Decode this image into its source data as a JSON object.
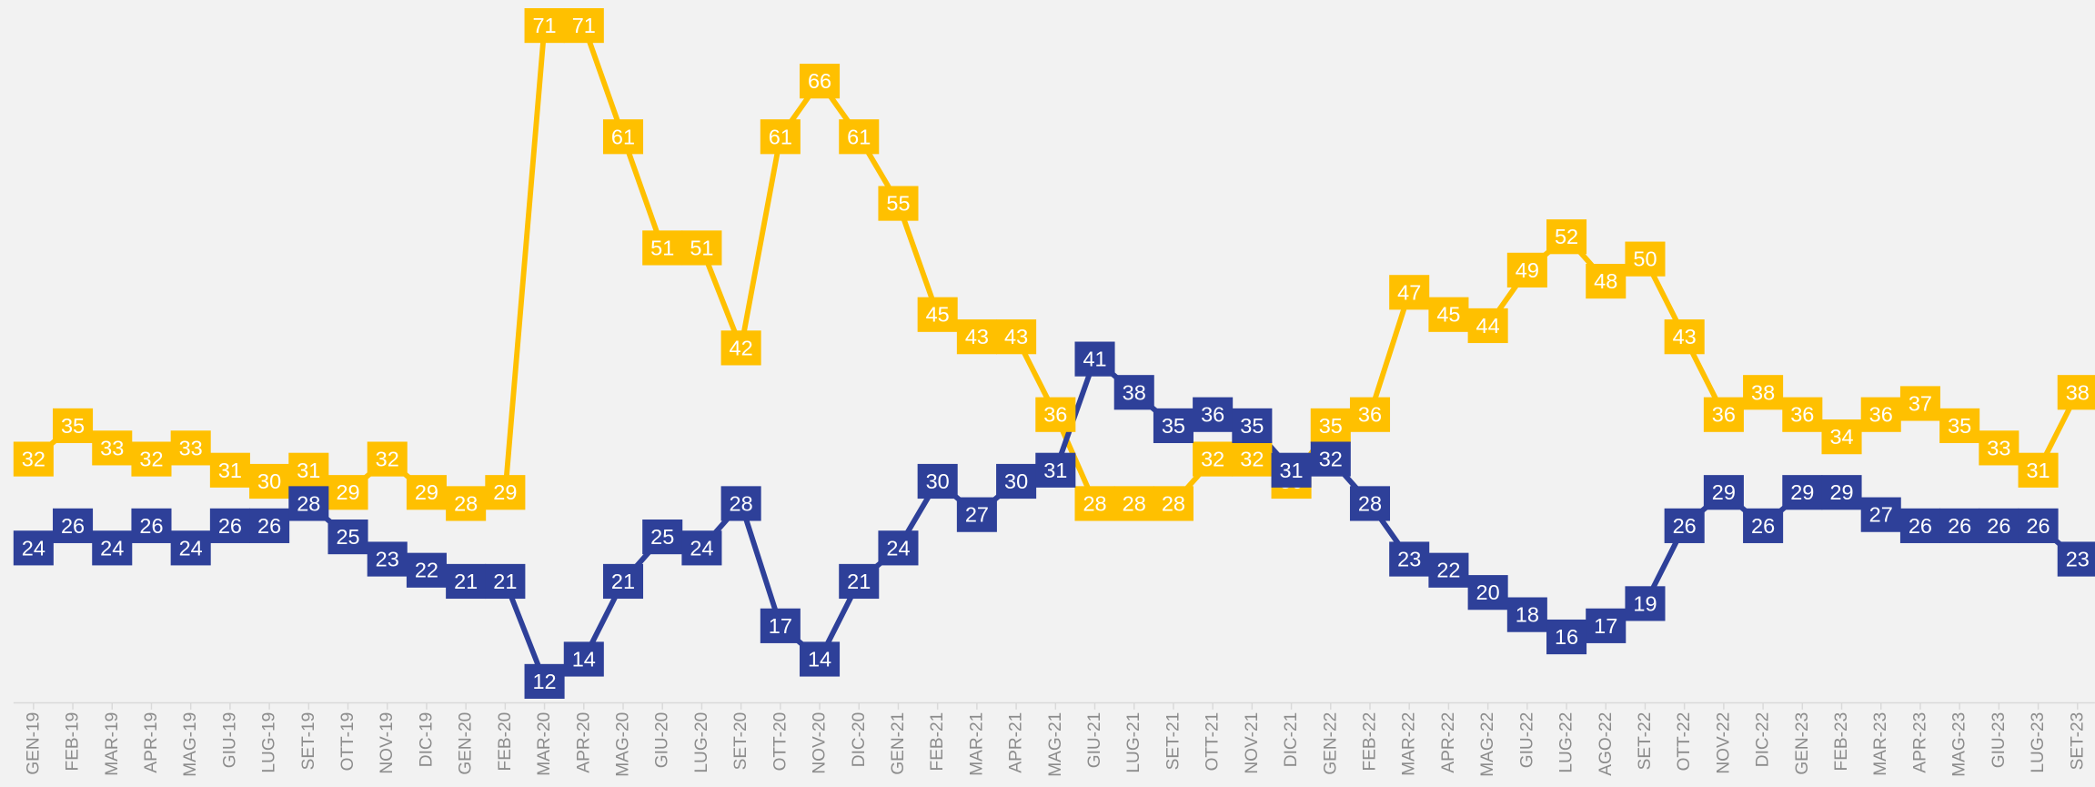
{
  "chart_data": {
    "type": "line",
    "categories": [
      "GEN-19",
      "FEB-19",
      "MAR-19",
      "APR-19",
      "MAG-19",
      "GIU-19",
      "LUG-19",
      "SET-19",
      "OTT-19",
      "NOV-19",
      "DIC-19",
      "GEN-20",
      "FEB-20",
      "MAR-20",
      "APR-20",
      "MAG-20",
      "GIU-20",
      "LUG-20",
      "SET-20",
      "OTT-20",
      "NOV-20",
      "DIC-20",
      "GEN-21",
      "FEB-21",
      "MAR-21",
      "APR-21",
      "MAG-21",
      "GIU-21",
      "LUG-21",
      "SET-21",
      "OTT-21",
      "NOV-21",
      "DIC-21",
      "GEN-22",
      "FEB-22",
      "MAR-22",
      "APR-22",
      "MAG-22",
      "GIU-22",
      "LUG-22",
      "AGO-22",
      "SET-22",
      "OTT-22",
      "NOV-22",
      "DIC-22",
      "GEN-23",
      "FEB-23",
      "MAR-23",
      "APR-23",
      "MAG-23",
      "GIU-23",
      "LUG-23",
      "SET-23"
    ],
    "series": [
      {
        "color": "#ffc000",
        "values": [
          32,
          35,
          33,
          32,
          33,
          31,
          30,
          31,
          29,
          32,
          29,
          28,
          29,
          71,
          71,
          61,
          51,
          51,
          42,
          61,
          66,
          61,
          55,
          45,
          43,
          43,
          36,
          28,
          28,
          28,
          32,
          32,
          30,
          35,
          36,
          47,
          45,
          44,
          49,
          52,
          48,
          50,
          43,
          36,
          38,
          36,
          34,
          36,
          37,
          35,
          33,
          31,
          38
        ]
      },
      {
        "color": "#2e4099",
        "values": [
          24,
          26,
          24,
          26,
          24,
          26,
          26,
          28,
          25,
          23,
          22,
          21,
          21,
          12,
          14,
          21,
          25,
          24,
          28,
          17,
          14,
          21,
          24,
          30,
          27,
          30,
          31,
          41,
          38,
          35,
          36,
          35,
          31,
          32,
          28,
          23,
          22,
          20,
          18,
          16,
          17,
          19,
          26,
          29,
          26,
          29,
          29,
          27,
          26,
          26,
          26,
          26,
          23
        ]
      }
    ],
    "ylim": [
      10,
      72
    ]
  }
}
